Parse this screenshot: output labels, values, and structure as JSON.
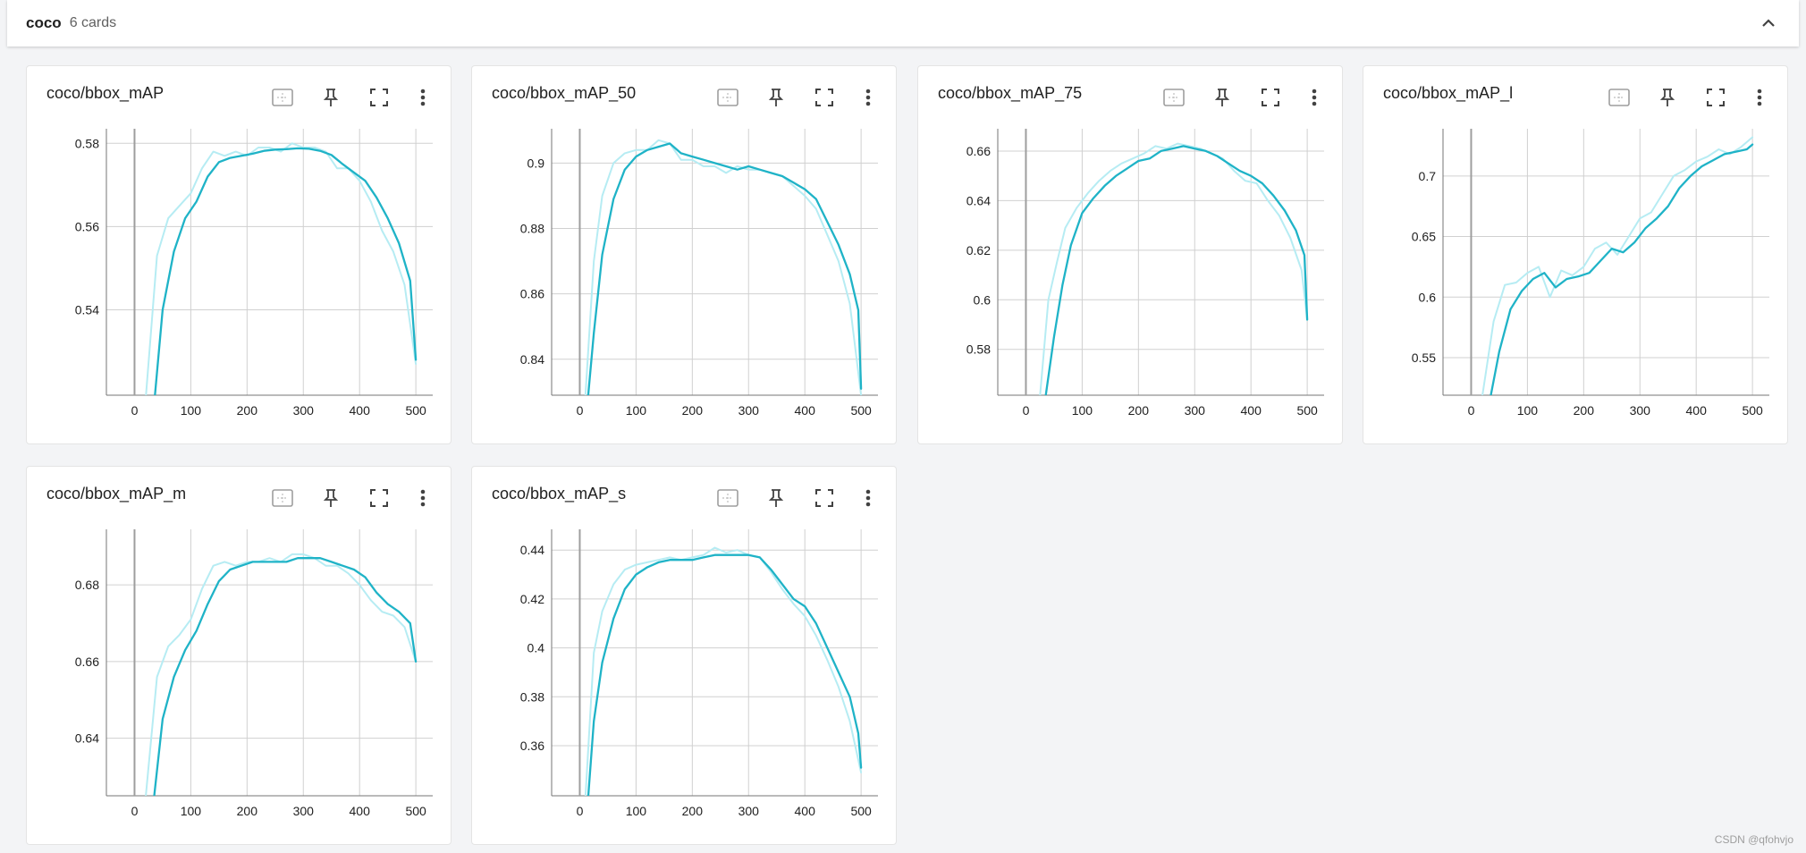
{
  "group": {
    "name": "coco",
    "count_label": "6 cards"
  },
  "watermark": "CSDN @qfohvjo",
  "colors": {
    "smoothed": "#1fb3c7",
    "raw": "#b6ecf3",
    "grid": "#d0d0d0",
    "axis": "#9e9e9e"
  },
  "cards": [
    {
      "title": "coco/bbox_mAP"
    },
    {
      "title": "coco/bbox_mAP_50"
    },
    {
      "title": "coco/bbox_mAP_75"
    },
    {
      "title": "coco/bbox_mAP_l"
    },
    {
      "title": "coco/bbox_mAP_m"
    },
    {
      "title": "coco/bbox_mAP_s"
    }
  ],
  "chart_data": [
    {
      "type": "line",
      "title": "coco/bbox_mAP",
      "xlim": [
        -50,
        530
      ],
      "ylim": [
        0.5195,
        0.5835
      ],
      "xticks": [
        0,
        100,
        200,
        300,
        400,
        500
      ],
      "yticks": [
        0.54,
        0.56,
        0.58
      ],
      "ytick_labels": [
        "0.54",
        "0.56",
        "0.58"
      ],
      "series": [
        {
          "role": "smoothed",
          "x": [
            36,
            50,
            70,
            90,
            110,
            130,
            150,
            170,
            190,
            210,
            230,
            250,
            270,
            290,
            310,
            330,
            350,
            370,
            390,
            410,
            430,
            450,
            470,
            490,
            500
          ],
          "y": [
            0.519,
            0.54,
            0.554,
            0.562,
            0.566,
            0.572,
            0.5755,
            0.5765,
            0.577,
            0.5775,
            0.5782,
            0.5785,
            0.5786,
            0.5788,
            0.5787,
            0.5782,
            0.5772,
            0.575,
            0.573,
            0.571,
            0.567,
            0.562,
            0.556,
            0.547,
            0.528
          ]
        },
        {
          "role": "raw",
          "x": [
            20,
            40,
            60,
            80,
            100,
            120,
            140,
            160,
            180,
            200,
            220,
            240,
            260,
            280,
            300,
            320,
            340,
            360,
            380,
            400,
            420,
            440,
            460,
            480,
            500
          ],
          "y": [
            0.519,
            0.553,
            0.562,
            0.565,
            0.568,
            0.574,
            0.578,
            0.577,
            0.578,
            0.577,
            0.579,
            0.579,
            0.578,
            0.58,
            0.579,
            0.579,
            0.578,
            0.574,
            0.574,
            0.571,
            0.566,
            0.559,
            0.554,
            0.546,
            0.527
          ]
        }
      ]
    },
    {
      "type": "line",
      "title": "coco/bbox_mAP_50",
      "xlim": [
        -50,
        530
      ],
      "ylim": [
        0.829,
        0.9105
      ],
      "xticks": [
        0,
        100,
        200,
        300,
        400,
        500
      ],
      "yticks": [
        0.84,
        0.86,
        0.88,
        0.9
      ],
      "ytick_labels": [
        "0.84",
        "0.86",
        "0.88",
        "0.9"
      ],
      "series": [
        {
          "role": "smoothed",
          "x": [
            15,
            25,
            40,
            60,
            80,
            100,
            120,
            140,
            160,
            180,
            200,
            220,
            240,
            260,
            280,
            300,
            320,
            340,
            360,
            380,
            400,
            420,
            440,
            460,
            480,
            495,
            500
          ],
          "y": [
            0.829,
            0.848,
            0.872,
            0.889,
            0.898,
            0.902,
            0.904,
            0.905,
            0.906,
            0.903,
            0.902,
            0.901,
            0.9,
            0.899,
            0.898,
            0.899,
            0.898,
            0.897,
            0.896,
            0.894,
            0.892,
            0.889,
            0.882,
            0.875,
            0.866,
            0.855,
            0.831
          ]
        },
        {
          "role": "raw",
          "x": [
            10,
            25,
            40,
            60,
            80,
            100,
            120,
            140,
            160,
            180,
            200,
            220,
            240,
            260,
            280,
            300,
            320,
            340,
            360,
            380,
            400,
            420,
            440,
            460,
            480,
            500
          ],
          "y": [
            0.829,
            0.87,
            0.89,
            0.9,
            0.903,
            0.904,
            0.904,
            0.907,
            0.906,
            0.901,
            0.901,
            0.899,
            0.899,
            0.897,
            0.899,
            0.898,
            0.898,
            0.897,
            0.896,
            0.893,
            0.89,
            0.886,
            0.878,
            0.87,
            0.857,
            0.829
          ]
        }
      ]
    },
    {
      "type": "line",
      "title": "coco/bbox_mAP_75",
      "xlim": [
        -50,
        530
      ],
      "ylim": [
        0.5615,
        0.669
      ],
      "xticks": [
        0,
        100,
        200,
        300,
        400,
        500
      ],
      "yticks": [
        0.58,
        0.6,
        0.62,
        0.64,
        0.66
      ],
      "ytick_labels": [
        "0.58",
        "0.6",
        "0.62",
        "0.64",
        "0.66"
      ],
      "series": [
        {
          "role": "smoothed",
          "x": [
            35,
            50,
            65,
            80,
            100,
            120,
            140,
            160,
            180,
            200,
            220,
            240,
            260,
            280,
            300,
            320,
            340,
            360,
            380,
            400,
            420,
            440,
            460,
            480,
            495,
            500
          ],
          "y": [
            0.561,
            0.585,
            0.606,
            0.622,
            0.635,
            0.641,
            0.646,
            0.65,
            0.653,
            0.656,
            0.657,
            0.66,
            0.661,
            0.662,
            0.661,
            0.66,
            0.658,
            0.655,
            0.652,
            0.65,
            0.647,
            0.642,
            0.636,
            0.628,
            0.618,
            0.592
          ]
        },
        {
          "role": "raw",
          "x": [
            25,
            40,
            55,
            70,
            90,
            110,
            130,
            150,
            170,
            190,
            210,
            230,
            250,
            270,
            290,
            310,
            330,
            350,
            370,
            390,
            410,
            430,
            450,
            470,
            490,
            500
          ],
          "y": [
            0.561,
            0.6,
            0.615,
            0.629,
            0.637,
            0.643,
            0.648,
            0.652,
            0.655,
            0.657,
            0.659,
            0.662,
            0.661,
            0.663,
            0.662,
            0.661,
            0.659,
            0.657,
            0.652,
            0.648,
            0.647,
            0.64,
            0.634,
            0.625,
            0.612,
            0.592
          ]
        }
      ]
    },
    {
      "type": "line",
      "title": "coco/bbox_mAP_l",
      "xlim": [
        -50,
        530
      ],
      "ylim": [
        0.519,
        0.739
      ],
      "xticks": [
        0,
        100,
        200,
        300,
        400,
        500
      ],
      "yticks": [
        0.55,
        0.6,
        0.65,
        0.7
      ],
      "ytick_labels": [
        "0.55",
        "0.6",
        "0.65",
        "0.7"
      ],
      "series": [
        {
          "role": "smoothed",
          "x": [
            35,
            50,
            70,
            90,
            110,
            130,
            150,
            170,
            190,
            210,
            230,
            250,
            270,
            290,
            310,
            330,
            350,
            370,
            390,
            410,
            430,
            450,
            470,
            490,
            500
          ],
          "y": [
            0.519,
            0.555,
            0.59,
            0.605,
            0.615,
            0.62,
            0.608,
            0.615,
            0.617,
            0.62,
            0.63,
            0.64,
            0.637,
            0.645,
            0.657,
            0.665,
            0.675,
            0.69,
            0.7,
            0.708,
            0.713,
            0.718,
            0.72,
            0.722,
            0.726
          ]
        },
        {
          "role": "raw",
          "x": [
            20,
            40,
            60,
            80,
            100,
            120,
            140,
            160,
            180,
            200,
            220,
            240,
            260,
            280,
            300,
            320,
            340,
            360,
            380,
            400,
            420,
            440,
            460,
            480,
            500
          ],
          "y": [
            0.519,
            0.58,
            0.61,
            0.612,
            0.62,
            0.625,
            0.6,
            0.622,
            0.618,
            0.625,
            0.64,
            0.645,
            0.635,
            0.65,
            0.665,
            0.67,
            0.685,
            0.7,
            0.705,
            0.712,
            0.716,
            0.722,
            0.718,
            0.724,
            0.732
          ]
        }
      ]
    },
    {
      "type": "line",
      "title": "coco/bbox_mAP_m",
      "xlim": [
        -50,
        530
      ],
      "ylim": [
        0.625,
        0.6945
      ],
      "xticks": [
        0,
        100,
        200,
        300,
        400,
        500
      ],
      "yticks": [
        0.64,
        0.66,
        0.68
      ],
      "ytick_labels": [
        "0.64",
        "0.66",
        "0.68"
      ],
      "series": [
        {
          "role": "smoothed",
          "x": [
            35,
            50,
            70,
            90,
            110,
            130,
            150,
            170,
            190,
            210,
            230,
            250,
            270,
            290,
            310,
            330,
            350,
            370,
            390,
            410,
            430,
            450,
            470,
            490,
            500
          ],
          "y": [
            0.625,
            0.645,
            0.656,
            0.663,
            0.668,
            0.675,
            0.681,
            0.684,
            0.685,
            0.686,
            0.686,
            0.686,
            0.686,
            0.687,
            0.687,
            0.687,
            0.686,
            0.685,
            0.684,
            0.682,
            0.678,
            0.675,
            0.673,
            0.67,
            0.66
          ]
        },
        {
          "role": "raw",
          "x": [
            20,
            40,
            60,
            80,
            100,
            120,
            140,
            160,
            180,
            200,
            220,
            240,
            260,
            280,
            300,
            320,
            340,
            360,
            380,
            400,
            420,
            440,
            460,
            480,
            500
          ],
          "y": [
            0.625,
            0.656,
            0.664,
            0.667,
            0.671,
            0.679,
            0.685,
            0.686,
            0.685,
            0.686,
            0.686,
            0.687,
            0.686,
            0.688,
            0.688,
            0.687,
            0.685,
            0.685,
            0.683,
            0.68,
            0.676,
            0.673,
            0.672,
            0.669,
            0.66
          ]
        }
      ]
    },
    {
      "type": "line",
      "title": "coco/bbox_mAP_s",
      "xlim": [
        -50,
        530
      ],
      "ylim": [
        0.3395,
        0.4485
      ],
      "xticks": [
        0,
        100,
        200,
        300,
        400,
        500
      ],
      "yticks": [
        0.36,
        0.38,
        0.4,
        0.42,
        0.44
      ],
      "ytick_labels": [
        "0.36",
        "0.38",
        "0.4",
        "0.42",
        "0.44"
      ],
      "series": [
        {
          "role": "smoothed",
          "x": [
            15,
            25,
            40,
            60,
            80,
            100,
            120,
            140,
            160,
            180,
            200,
            220,
            240,
            260,
            280,
            300,
            320,
            340,
            360,
            380,
            400,
            420,
            440,
            460,
            480,
            495,
            500
          ],
          "y": [
            0.339,
            0.37,
            0.394,
            0.412,
            0.424,
            0.43,
            0.433,
            0.435,
            0.436,
            0.436,
            0.436,
            0.437,
            0.438,
            0.438,
            0.438,
            0.438,
            0.437,
            0.432,
            0.426,
            0.42,
            0.417,
            0.41,
            0.4,
            0.39,
            0.38,
            0.365,
            0.351
          ]
        },
        {
          "role": "raw",
          "x": [
            10,
            25,
            40,
            60,
            80,
            100,
            120,
            140,
            160,
            180,
            200,
            220,
            240,
            260,
            280,
            300,
            320,
            340,
            360,
            380,
            400,
            420,
            440,
            460,
            480,
            500
          ],
          "y": [
            0.339,
            0.398,
            0.415,
            0.426,
            0.432,
            0.434,
            0.435,
            0.436,
            0.437,
            0.436,
            0.437,
            0.438,
            0.441,
            0.439,
            0.44,
            0.438,
            0.437,
            0.431,
            0.424,
            0.418,
            0.413,
            0.405,
            0.395,
            0.384,
            0.37,
            0.349
          ]
        }
      ]
    }
  ]
}
